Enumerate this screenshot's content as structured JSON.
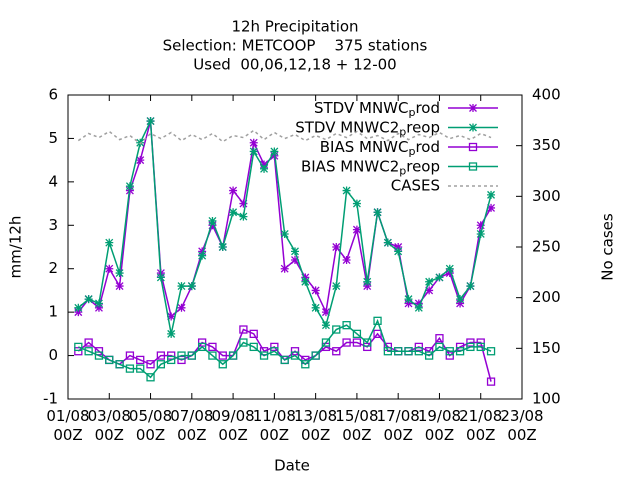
{
  "chart_data": {
    "type": "line",
    "title": "12h Precipitation",
    "subtitle": [
      "Selection: METCOOP    375 stations",
      "Used  00,06,12,18 + 12-00"
    ],
    "xlabel": "Date",
    "ylabel": "mm/12h",
    "y2label": "No cases",
    "x": [
      "01/08 12Z",
      "02/08 00Z",
      "02/08 12Z",
      "03/08 00Z",
      "03/08 12Z",
      "04/08 00Z",
      "04/08 12Z",
      "05/08 00Z",
      "05/08 12Z",
      "06/08 00Z",
      "06/08 12Z",
      "07/08 00Z",
      "07/08 12Z",
      "08/08 00Z",
      "08/08 12Z",
      "09/08 00Z",
      "09/08 12Z",
      "10/08 00Z",
      "10/08 12Z",
      "11/08 00Z",
      "11/08 12Z",
      "12/08 00Z",
      "12/08 12Z",
      "13/08 00Z",
      "13/08 12Z",
      "14/08 00Z",
      "14/08 12Z",
      "15/08 00Z",
      "15/08 12Z",
      "16/08 00Z",
      "16/08 12Z",
      "17/08 00Z",
      "17/08 12Z",
      "18/08 00Z",
      "18/08 12Z",
      "19/08 00Z",
      "19/08 12Z",
      "20/08 00Z",
      "20/08 12Z",
      "21/08 00Z",
      "21/08 12Z"
    ],
    "xlim": [
      "01/08 00Z",
      "23/08 00Z"
    ],
    "xticks": [
      {
        "value": "01/08 00Z",
        "label": "01/08\n00Z"
      },
      {
        "value": "03/08 00Z",
        "label": "03/08\n00Z"
      },
      {
        "value": "05/08 00Z",
        "label": "05/08\n00Z"
      },
      {
        "value": "07/08 00Z",
        "label": "07/08\n00Z"
      },
      {
        "value": "09/08 00Z",
        "label": "09/08\n00Z"
      },
      {
        "value": "11/08 00Z",
        "label": "11/08\n00Z"
      },
      {
        "value": "13/08 00Z",
        "label": "13/08\n00Z"
      },
      {
        "value": "15/08 00Z",
        "label": "15/08\n00Z"
      },
      {
        "value": "17/08 00Z",
        "label": "17/08\n00Z"
      },
      {
        "value": "19/08 00Z",
        "label": "19/08\n00Z"
      },
      {
        "value": "21/08 00Z",
        "label": "21/08\n00Z"
      },
      {
        "value": "23/08 00Z",
        "label": "23/08\n00Z"
      }
    ],
    "ylim": [
      -1,
      6
    ],
    "yticks": [
      -1,
      0,
      1,
      2,
      3,
      4,
      5,
      6
    ],
    "y2lim": [
      100,
      400
    ],
    "y2ticks": [
      100,
      150,
      200,
      250,
      300,
      350,
      400
    ],
    "grid": false,
    "legend": "top-right",
    "series": [
      {
        "name": "STDV MNWC_prod",
        "color": "#9400d3",
        "marker": "star",
        "values": [
          1.0,
          1.3,
          1.1,
          2.0,
          1.6,
          3.8,
          4.5,
          5.4,
          1.9,
          0.9,
          1.1,
          1.6,
          2.4,
          3.0,
          2.5,
          3.8,
          3.5,
          4.9,
          4.4,
          4.6,
          2.0,
          2.2,
          1.8,
          1.5,
          1.0,
          2.5,
          2.2,
          2.9,
          1.6,
          3.3,
          2.6,
          2.5,
          1.2,
          1.2,
          1.5,
          1.8,
          1.9,
          1.2,
          1.6,
          3.0,
          3.4
        ]
      },
      {
        "name": "STDV MNWC2_preop",
        "color": "#009e73",
        "marker": "star",
        "values": [
          1.1,
          1.3,
          1.2,
          2.6,
          1.9,
          3.9,
          4.9,
          5.4,
          1.8,
          0.5,
          1.6,
          1.6,
          2.3,
          3.1,
          2.5,
          3.3,
          3.2,
          4.7,
          4.3,
          4.7,
          2.8,
          2.4,
          1.7,
          1.1,
          0.7,
          1.6,
          3.8,
          3.5,
          1.7,
          3.3,
          2.6,
          2.4,
          1.3,
          1.1,
          1.7,
          1.8,
          2.0,
          1.3,
          1.6,
          2.8,
          3.7
        ]
      },
      {
        "name": "BIAS MNWC_prod",
        "color": "#9400d3",
        "marker": "square",
        "values": [
          0.1,
          0.3,
          0.1,
          -0.1,
          -0.2,
          0.0,
          -0.1,
          -0.2,
          0.0,
          0.0,
          -0.1,
          0.0,
          0.3,
          0.2,
          0.0,
          0.0,
          0.6,
          0.5,
          0.1,
          0.2,
          -0.1,
          0.1,
          -0.1,
          0.0,
          0.2,
          0.1,
          0.3,
          0.3,
          0.2,
          0.5,
          0.2,
          0.1,
          0.1,
          0.2,
          0.1,
          0.4,
          0.0,
          0.2,
          0.3,
          0.3,
          -0.6
        ]
      },
      {
        "name": "BIAS MNWC2_preop",
        "color": "#009e73",
        "marker": "square",
        "values": [
          0.2,
          0.1,
          0.0,
          -0.1,
          -0.2,
          -0.3,
          -0.3,
          -0.5,
          -0.2,
          -0.1,
          0.0,
          0.0,
          0.2,
          0.0,
          -0.2,
          0.0,
          0.3,
          0.2,
          0.0,
          0.1,
          -0.1,
          0.0,
          -0.2,
          0.0,
          0.3,
          0.6,
          0.7,
          0.5,
          0.3,
          0.8,
          0.1,
          0.1,
          0.1,
          0.1,
          0.0,
          0.2,
          0.1,
          0.1,
          0.2,
          0.2,
          0.1
        ]
      },
      {
        "name": "CASES",
        "color": "#a0a0a0",
        "dash": true,
        "axis": "y2",
        "values": [
          355,
          362,
          358,
          364,
          356,
          360,
          352,
          362,
          357,
          363,
          355,
          361,
          356,
          362,
          354,
          360,
          358,
          365,
          356,
          363,
          357,
          361,
          355,
          360,
          356,
          362,
          358,
          364,
          357,
          360,
          355,
          362,
          356,
          361,
          358,
          363,
          357,
          360,
          356,
          362,
          358
        ]
      }
    ]
  }
}
